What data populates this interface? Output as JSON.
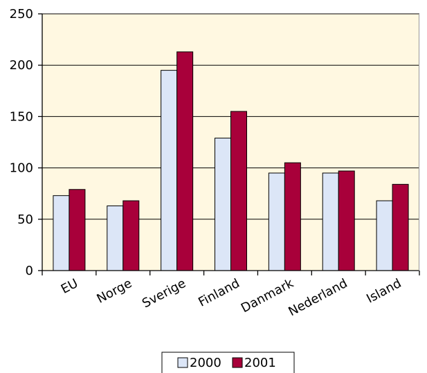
{
  "chart_data": {
    "type": "bar",
    "categories": [
      "EU",
      "Norge",
      "Sverige",
      "Finland",
      "Danmark",
      "Nederland",
      "Island"
    ],
    "series": [
      {
        "name": "2000",
        "values": [
          73,
          63,
          195,
          129,
          95,
          95,
          68
        ],
        "color": "#dce6f7"
      },
      {
        "name": "2001",
        "values": [
          79,
          68,
          213,
          155,
          105,
          97,
          84
        ],
        "color": "#a8003a"
      }
    ],
    "title": "",
    "xlabel": "",
    "ylabel": "",
    "ylim": [
      0,
      250
    ],
    "yticks": [
      "0",
      "50",
      "100",
      "150",
      "200",
      "250"
    ],
    "grid": true,
    "legend_position": "bottom",
    "plot_background": "#fff8e1"
  }
}
